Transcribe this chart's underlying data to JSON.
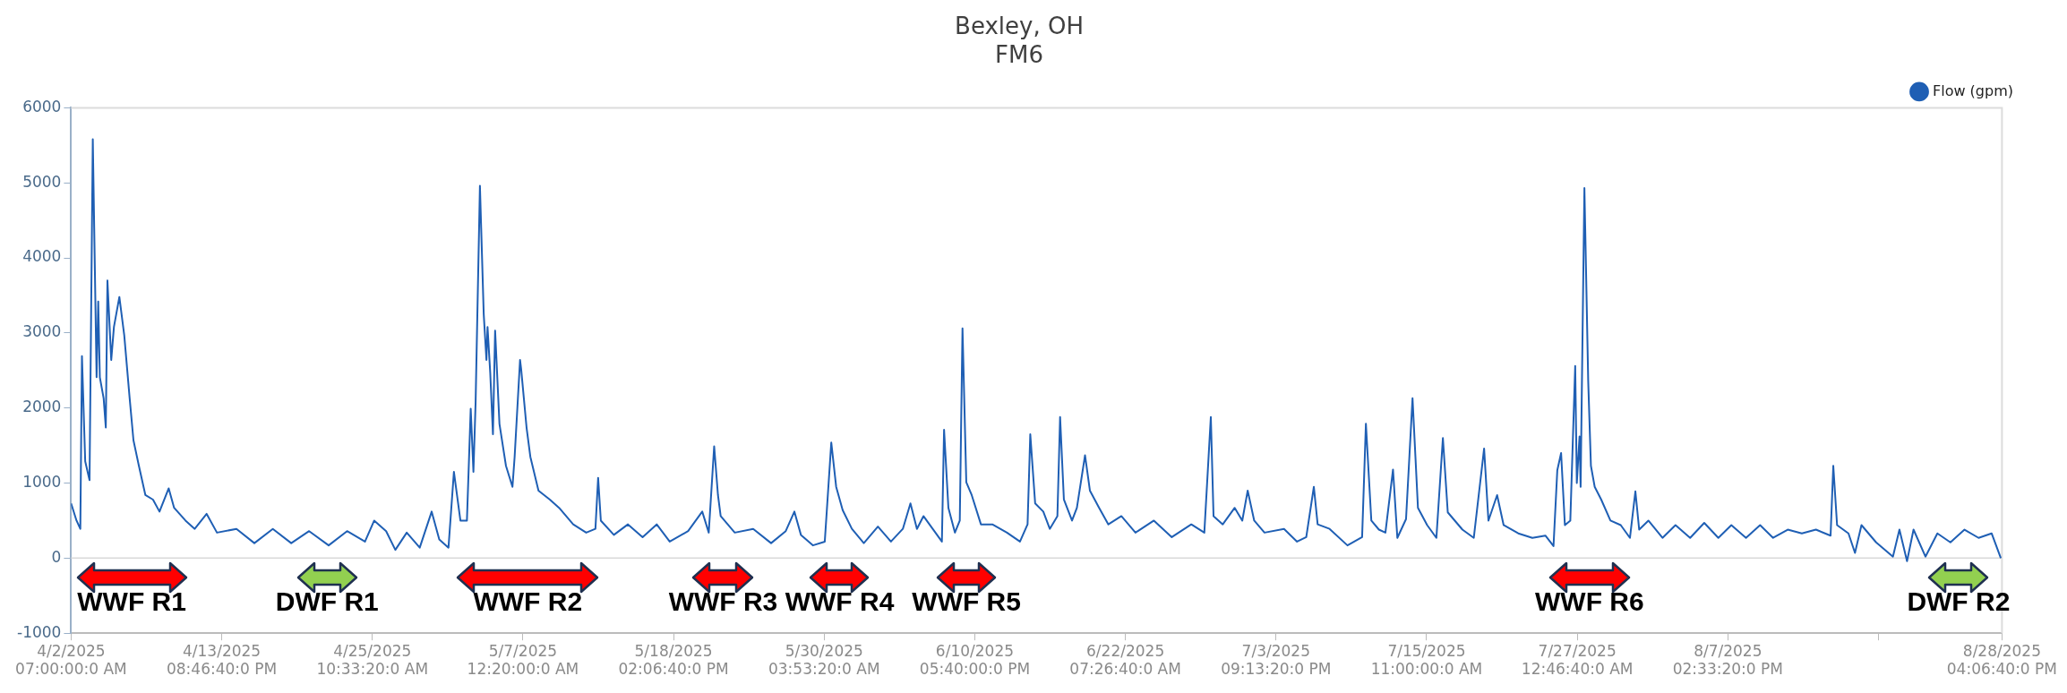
{
  "chart_data": {
    "type": "line",
    "title": "Bexley, OH",
    "subtitle": "FM6",
    "xlim": [
      "2025-04-02T07:00",
      "2025-08-28T16:06:40"
    ],
    "xticks": [
      {
        "value": "2025-04-02T07:00",
        "label": "4/2/2025\n07:00:00:0 AM"
      },
      {
        "value": "2025-04-13T20:46:40",
        "label": "4/13/2025\n08:46:40:0 PM"
      },
      {
        "value": "2025-04-25T10:33:20",
        "label": "4/25/2025\n10:33:20:0 AM"
      },
      {
        "value": "2025-05-07T00:20",
        "label": "5/7/2025\n12:20:00:0 AM"
      },
      {
        "value": "2025-05-18T14:06:40",
        "label": "5/18/2025\n02:06:40:0 PM"
      },
      {
        "value": "2025-05-30T03:53:20",
        "label": "5/30/2025\n03:53:20:0 AM"
      },
      {
        "value": "2025-06-10T17:40",
        "label": "6/10/2025\n05:40:00:0 PM"
      },
      {
        "value": "2025-06-22T07:26:40",
        "label": "6/22/2025\n07:26:40:0 AM"
      },
      {
        "value": "2025-07-03T21:13:20",
        "label": "7/3/2025\n09:13:20:0 PM"
      },
      {
        "value": "2025-07-15T11:00",
        "label": "7/15/2025\n11:00:00:0 AM"
      },
      {
        "value": "2025-07-27T00:46:40",
        "label": "7/27/2025\n12:46:40:0 AM"
      },
      {
        "value": "2025-08-07T14:33:20",
        "label": "8/7/2025\n02:33:20:0 PM"
      },
      {
        "value": "2025-08-19T04:20",
        "label": null
      },
      {
        "value": "2025-08-28T16:06:40",
        "label": "8/28/2025\n04:06:40:0 PM"
      }
    ],
    "ylim": [
      -1000,
      6000
    ],
    "yticks": [
      -1000,
      0,
      1000,
      2000,
      3000,
      4000,
      5000,
      6000
    ],
    "grid": false,
    "legend": "top right",
    "line_style": "solid",
    "ref_lines": [
      {
        "axis": "y",
        "value": 0,
        "color": "#d9d9d9"
      }
    ],
    "annotations": [
      "WWF R1",
      "DWF R1",
      "WWF R2",
      "WWF R3",
      "WWF R4",
      "WWF R5",
      "WWF R6",
      "DWF R2"
    ],
    "series": [
      {
        "name": "Flow (gpm)",
        "color": "#1f5fb4",
        "x": [
          "2025-04-02T07:00",
          "2025-04-02T17:00",
          "2025-04-03T00:00",
          "2025-04-03T03:00",
          "2025-04-03T09:00",
          "2025-04-03T17:00",
          "2025-04-03T23:00",
          "2025-04-04T06:00",
          "2025-04-04T09:00",
          "2025-04-04T12:00",
          "2025-04-04T19:00",
          "2025-04-04T23:00",
          "2025-04-05T02:00",
          "2025-04-05T09:00",
          "2025-04-05T14:00",
          "2025-04-06T00:00",
          "2025-04-06T09:00",
          "2025-04-06T19:00",
          "2025-04-07T02:00",
          "2025-04-07T12:00",
          "2025-04-08T00:00",
          "2025-04-08T14:00",
          "2025-04-09T02:00",
          "2025-04-09T19:00",
          "2025-04-10T05:00",
          "2025-04-11T02:00",
          "2025-04-11T19:00",
          "2025-04-12T17:00",
          "2025-04-13T12:00",
          "2025-04-15T00:00",
          "2025-04-16T09:00",
          "2025-04-17T19:00",
          "2025-04-19T05:00",
          "2025-04-20T14:00",
          "2025-04-22T02:00",
          "2025-04-23T12:00",
          "2025-04-24T21:00",
          "2025-04-25T14:00",
          "2025-04-26T12:00",
          "2025-04-27T05:00",
          "2025-04-28T02:00",
          "2025-04-29T02:00",
          "2025-04-30T00:00",
          "2025-04-30T14:00",
          "2025-05-01T07:00",
          "2025-05-01T17:00",
          "2025-05-02T05:00",
          "2025-05-02T17:00",
          "2025-05-03T00:00",
          "2025-05-03T05:00",
          "2025-05-03T09:00",
          "2025-05-03T17:00",
          "2025-05-04T00:00",
          "2025-05-04T05:00",
          "2025-05-04T07:00",
          "2025-05-04T12:00",
          "2025-05-04T17:00",
          "2025-05-04T21:00",
          "2025-05-05T05:00",
          "2025-05-05T17:00",
          "2025-05-06T05:00",
          "2025-05-06T09:00",
          "2025-05-06T19:00",
          "2025-05-06T21:00",
          "2025-05-07T07:00",
          "2025-05-07T14:00",
          "2025-05-08T05:00",
          "2025-05-09T02:00",
          "2025-05-09T19:00",
          "2025-05-10T21:00",
          "2025-05-11T21:00",
          "2025-05-12T14:00",
          "2025-05-12T19:00",
          "2025-05-13T00:00",
          "2025-05-14T00:00",
          "2025-05-15T02:00",
          "2025-05-16T05:00",
          "2025-05-17T07:00",
          "2025-05-18T07:00",
          "2025-05-19T17:00",
          "2025-05-20T19:00",
          "2025-05-21T07:00",
          "2025-05-21T17:00",
          "2025-05-22T00:00",
          "2025-05-22T05:00",
          "2025-05-23T07:00",
          "2025-05-24T17:00",
          "2025-05-26T02:00",
          "2025-05-27T05:00",
          "2025-05-27T21:00",
          "2025-05-28T09:00",
          "2025-05-29T07:00",
          "2025-05-30T05:00",
          "2025-05-30T17:00",
          "2025-05-31T02:00",
          "2025-05-31T14:00",
          "2025-06-01T07:00",
          "2025-06-02T05:00",
          "2025-06-03T07:00",
          "2025-06-04T07:00",
          "2025-06-05T05:00",
          "2025-06-05T19:00",
          "2025-06-06T07:00",
          "2025-06-06T19:00",
          "2025-06-07T12:00",
          "2025-06-08T05:00",
          "2025-06-08T09:00",
          "2025-06-08T17:00",
          "2025-06-09T05:00",
          "2025-06-09T14:00",
          "2025-06-09T19:00",
          "2025-06-10T02:00",
          "2025-06-10T12:00",
          "2025-06-11T05:00",
          "2025-06-12T02:00",
          "2025-06-13T05:00",
          "2025-06-14T05:00",
          "2025-06-14T19:00",
          "2025-06-15T00:00",
          "2025-06-15T09:00",
          "2025-06-16T00:00",
          "2025-06-16T12:00",
          "2025-06-17T02:00",
          "2025-06-17T07:00",
          "2025-06-17T14:00",
          "2025-06-18T05:00",
          "2025-06-18T14:00",
          "2025-06-19T05:00",
          "2025-06-19T14:00",
          "2025-06-20T07:00",
          "2025-06-21T00:00",
          "2025-06-22T00:00",
          "2025-06-23T02:00",
          "2025-06-24T12:00",
          "2025-06-25T21:00",
          "2025-06-27T09:00",
          "2025-06-28T09:00",
          "2025-06-28T21:00",
          "2025-06-29T02:00",
          "2025-06-29T19:00",
          "2025-06-30T17:00",
          "2025-07-01T07:00",
          "2025-07-01T17:00",
          "2025-07-02T05:00",
          "2025-07-03T00:00",
          "2025-07-04T12:00",
          "2025-07-05T12:00",
          "2025-07-06T05:00",
          "2025-07-06T19:00",
          "2025-07-07T02:00",
          "2025-07-08T00:00",
          "2025-07-09T09:00",
          "2025-07-10T12:00",
          "2025-07-10T19:00",
          "2025-07-11T05:00",
          "2025-07-11T19:00",
          "2025-07-12T07:00",
          "2025-07-12T21:00",
          "2025-07-13T05:00",
          "2025-07-13T21:00",
          "2025-07-14T09:00",
          "2025-07-14T19:00",
          "2025-07-15T12:00",
          "2025-07-16T05:00",
          "2025-07-16T17:00",
          "2025-07-17T02:00",
          "2025-07-18T05:00",
          "2025-07-19T02:00",
          "2025-07-19T21:00",
          "2025-07-20T05:00",
          "2025-07-20T21:00",
          "2025-07-21T09:00",
          "2025-07-22T12:00",
          "2025-07-23T14:00",
          "2025-07-24T14:00",
          "2025-07-25T05:00",
          "2025-07-25T12:00",
          "2025-07-25T19:00",
          "2025-07-26T02:00",
          "2025-07-26T12:00",
          "2025-07-26T21:00",
          "2025-07-27T00:00",
          "2025-07-27T05:00",
          "2025-07-27T07:00",
          "2025-07-27T14:00",
          "2025-07-27T21:00",
          "2025-07-28T02:00",
          "2025-07-28T09:00",
          "2025-07-28T21:00",
          "2025-07-29T14:00",
          "2025-07-30T09:00",
          "2025-07-31T02:00",
          "2025-07-31T12:00",
          "2025-07-31T19:00",
          "2025-08-01T12:00",
          "2025-08-02T14:00",
          "2025-08-03T14:00",
          "2025-08-04T17:00",
          "2025-08-05T19:00",
          "2025-08-06T21:00",
          "2025-08-07T21:00",
          "2025-08-09T00:00",
          "2025-08-10T02:00",
          "2025-08-11T02:00",
          "2025-08-12T05:00",
          "2025-08-13T07:00",
          "2025-08-14T09:00",
          "2025-08-15T12:00",
          "2025-08-15T17:00",
          "2025-08-16T00:00",
          "2025-08-16T21:00",
          "2025-08-17T09:00",
          "2025-08-17T21:00",
          "2025-08-19T00:00",
          "2025-08-20T07:00",
          "2025-08-20T19:00",
          "2025-08-21T09:00",
          "2025-08-21T21:00",
          "2025-08-22T19:00",
          "2025-08-23T17:00",
          "2025-08-24T17:00",
          "2025-08-25T19:00",
          "2025-08-26T21:00",
          "2025-08-27T21:00",
          "2025-08-28T14:00"
        ],
        "values": [
          730,
          500,
          390,
          2690,
          1290,
          1040,
          5580,
          2410,
          3420,
          2410,
          2130,
          1740,
          3700,
          2640,
          3080,
          3480,
          2970,
          2130,
          1570,
          1230,
          840,
          780,
          620,
          930,
          670,
          500,
          390,
          590,
          340,
          390,
          200,
          390,
          200,
          360,
          170,
          360,
          220,
          500,
          360,
          110,
          340,
          140,
          620,
          250,
          140,
          1150,
          500,
          500,
          1990,
          1150,
          2070,
          4960,
          3250,
          2640,
          3080,
          2470,
          1650,
          3030,
          1790,
          1230,
          950,
          1350,
          2640,
          2520,
          1740,
          1350,
          900,
          780,
          670,
          450,
          340,
          390,
          1070,
          500,
          310,
          450,
          280,
          450,
          220,
          360,
          620,
          340,
          1490,
          840,
          560,
          340,
          390,
          200,
          360,
          620,
          310,
          170,
          220,
          1540,
          950,
          640,
          390,
          200,
          420,
          220,
          390,
          730,
          390,
          560,
          390,
          220,
          1710,
          670,
          340,
          500,
          3060,
          1010,
          840,
          450,
          450,
          340,
          220,
          450,
          1650,
          730,
          620,
          390,
          560,
          1880,
          780,
          500,
          670,
          1370,
          900,
          670,
          450,
          560,
          340,
          500,
          280,
          450,
          340,
          1880,
          560,
          450,
          670,
          500,
          900,
          500,
          340,
          390,
          220,
          280,
          950,
          450,
          390,
          170,
          280,
          1790,
          500,
          380,
          340,
          1180,
          270,
          520,
          2130,
          670,
          440,
          270,
          1600,
          610,
          380,
          270,
          1460,
          500,
          840,
          440,
          330,
          270,
          300,
          160,
          1170,
          1400,
          440,
          500,
          2560,
          1000,
          1620,
          950,
          4930,
          2360,
          1230,
          950,
          780,
          500,
          440,
          270,
          890,
          380,
          500,
          270,
          440,
          270,
          470,
          270,
          440,
          270,
          440,
          270,
          380,
          330,
          380,
          300,
          1230,
          440,
          330,
          70,
          440,
          210,
          20,
          380,
          -40,
          380,
          20,
          330,
          210,
          380,
          270,
          330,
          0
        ]
      }
    ]
  }
}
